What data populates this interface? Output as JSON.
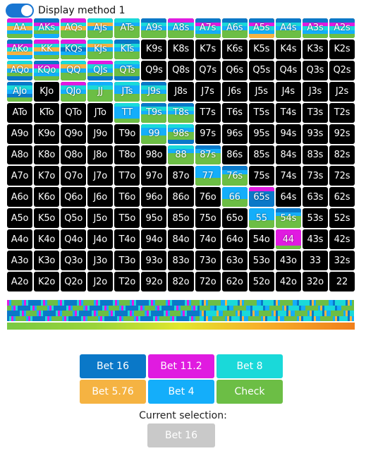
{
  "toggle": {
    "label": "Display method 1",
    "on": true
  },
  "colors": {
    "bet16": "#0a78c8",
    "bet11_2": "#e01be0",
    "bet8": "#1ad9d9",
    "bet5_76": "#f5b342",
    "bet4": "#14aefa",
    "check": "#6cbe45"
  },
  "grid": {
    "rows": [
      [
        "AA",
        "AKs",
        "AQs",
        "AJs",
        "ATs",
        "A9s",
        "A8s",
        "A7s",
        "A6s",
        "A5s",
        "A4s",
        "A3s",
        "A2s"
      ],
      [
        "AKo",
        "KK",
        "KQs",
        "KJs",
        "KTs",
        "K9s",
        "K8s",
        "K7s",
        "K6s",
        "K5s",
        "K4s",
        "K3s",
        "K2s"
      ],
      [
        "AQo",
        "KQo",
        "QQ",
        "QJs",
        "QTs",
        "Q9s",
        "Q8s",
        "Q7s",
        "Q6s",
        "Q5s",
        "Q4s",
        "Q3s",
        "Q2s"
      ],
      [
        "AJo",
        "KJo",
        "QJo",
        "JJ",
        "JTs",
        "J9s",
        "J8s",
        "J7s",
        "J6s",
        "J5s",
        "J4s",
        "J3s",
        "J2s"
      ],
      [
        "ATo",
        "KTo",
        "QTo",
        "JTo",
        "TT",
        "T9s",
        "T8s",
        "T7s",
        "T6s",
        "T5s",
        "T4s",
        "T3s",
        "T2s"
      ],
      [
        "A9o",
        "K9o",
        "Q9o",
        "J9o",
        "T9o",
        "99",
        "98s",
        "97s",
        "96s",
        "95s",
        "94s",
        "93s",
        "92s"
      ],
      [
        "A8o",
        "K8o",
        "Q8o",
        "J8o",
        "T8o",
        "98o",
        "88",
        "87s",
        "86s",
        "85s",
        "84s",
        "83s",
        "82s"
      ],
      [
        "A7o",
        "K7o",
        "Q7o",
        "J7o",
        "T7o",
        "97o",
        "87o",
        "77",
        "76s",
        "75s",
        "74s",
        "73s",
        "72s"
      ],
      [
        "A6o",
        "K6o",
        "Q6o",
        "J6o",
        "T6o",
        "96o",
        "86o",
        "76o",
        "66",
        "65s",
        "64s",
        "63s",
        "62s"
      ],
      [
        "A5o",
        "K5o",
        "Q5o",
        "J5o",
        "T5o",
        "95o",
        "85o",
        "75o",
        "65o",
        "55",
        "54s",
        "53s",
        "52s"
      ],
      [
        "A4o",
        "K4o",
        "Q4o",
        "J4o",
        "T4o",
        "94o",
        "84o",
        "74o",
        "64o",
        "54o",
        "44",
        "43s",
        "42s"
      ],
      [
        "A3o",
        "K3o",
        "Q3o",
        "J3o",
        "T3o",
        "93o",
        "83o",
        "73o",
        "63o",
        "53o",
        "43o",
        "33",
        "32s"
      ],
      [
        "A2o",
        "K2o",
        "Q2o",
        "J2o",
        "T2o",
        "92o",
        "82o",
        "72o",
        "62o",
        "52o",
        "42o",
        "32o",
        "22"
      ]
    ],
    "strategies": {
      "AA": [
        "bet11_2",
        "bet8",
        "bet5_76",
        "bet4",
        "check"
      ],
      "AKs": [
        "bet16",
        "bet11_2",
        "bet8",
        "check",
        "bet4"
      ],
      "AQs": [
        "bet11_2",
        "bet8",
        "bet5_76",
        "check",
        "check"
      ],
      "AJs": [
        "bet8",
        "bet5_76",
        "bet4",
        "check",
        "check"
      ],
      "ATs": [
        "bet8",
        "bet4",
        "check",
        "check",
        "check"
      ],
      "A9s": [
        "bet16",
        "bet8",
        "bet4",
        "check",
        "check"
      ],
      "A8s": [
        "bet11_2",
        "bet8",
        "bet4",
        "check",
        "check"
      ],
      "A7s": [
        "bet16",
        "bet11_2",
        "bet8",
        "bet4",
        "check"
      ],
      "A6s": [
        "bet16",
        "bet8",
        "bet4",
        "check",
        "check"
      ],
      "A5s": [
        "bet16",
        "bet11_2",
        "bet8",
        "bet4",
        "bet5_76"
      ],
      "A4s": [
        "bet16",
        "bet8",
        "bet4",
        "check",
        "check"
      ],
      "A3s": [
        "bet16",
        "bet11_2",
        "bet8",
        "bet4",
        "check"
      ],
      "A2s": [
        "bet16",
        "bet11_2",
        "bet8",
        "bet4",
        "check"
      ],
      "AKo": [
        "bet16",
        "bet11_2",
        "bet8",
        "bet5_76",
        "bet4"
      ],
      "KK": [
        "bet11_2",
        "bet8",
        "bet5_76",
        "bet4",
        "check"
      ],
      "KQs": [
        "bet11_2",
        "bet8",
        "bet16",
        "bet4",
        "check"
      ],
      "KJs": [
        "bet8",
        "bet5_76",
        "bet4",
        "check",
        "check"
      ],
      "KTs": [
        "bet16",
        "bet8",
        "bet4",
        "check",
        "check"
      ],
      "AQo": [
        "bet8",
        "bet5_76",
        "bet4",
        "check",
        "bet16"
      ],
      "KQo": [
        "bet16",
        "bet11_2",
        "bet8",
        "bet4",
        "check"
      ],
      "QQ": [
        "bet8",
        "bet5_76",
        "bet4",
        "check",
        "check"
      ],
      "QJs": [
        "bet11_2",
        "bet8",
        "bet4",
        "check",
        "bet16"
      ],
      "QTs": [
        "bet8",
        "bet4",
        "check",
        "check",
        "bet16"
      ],
      "AJo": [
        "bet16",
        "bet8",
        "bet4",
        "bet16",
        "check"
      ],
      "QJo": [
        "bet11_2",
        "bet8",
        "bet4",
        "check",
        "check"
      ],
      "JJ": [
        "bet4",
        "bet8",
        "check",
        "check",
        "check"
      ],
      "JTs": [
        "bet8",
        "bet4",
        "bet4",
        "check",
        "check"
      ],
      "J9s": [
        "bet16",
        "bet8",
        "bet4",
        "check",
        "check"
      ],
      "TT": [
        "bet8",
        "bet4",
        "bet4",
        "bet4",
        "check"
      ],
      "T9s": [
        "bet16",
        "bet8",
        "bet4",
        "check",
        "check"
      ],
      "T8s": [
        "bet16",
        "bet8",
        "bet4",
        "check",
        "check"
      ],
      "99": [
        "bet8",
        "bet4",
        "bet4",
        "check",
        "check"
      ],
      "98s": [
        "bet8",
        "bet4",
        "check",
        "check",
        "bet16"
      ],
      "88": [
        "bet8",
        "bet4",
        "check",
        "check",
        "check"
      ],
      "87s": [
        "bet16",
        "bet4",
        "check",
        "check",
        "check"
      ],
      "77": [
        "bet4",
        "bet4",
        "bet4",
        "check",
        "check"
      ],
      "76s": [
        "bet16",
        "bet4",
        "check",
        "check",
        "check"
      ],
      "66": [
        "bet4",
        "bet4",
        "bet4",
        "check",
        "check"
      ],
      "65s": [
        "bet11_2",
        "bet16",
        "bet16",
        "bet16",
        "bet16"
      ],
      "55": [
        "bet4",
        "bet4",
        "bet4",
        "check",
        "check"
      ],
      "54s": [
        "bet16",
        "bet4",
        "check",
        "check",
        "check"
      ],
      "44": [
        "bet11_2",
        "bet11_2",
        "bet11_2",
        "bet11_2",
        "check"
      ]
    }
  },
  "ribbon_colors": [
    "bet16",
    "bet11_2",
    "bet8",
    "bet5_76",
    "bet4",
    "check"
  ],
  "actions": [
    {
      "key": "bet16",
      "label": "Bet 16"
    },
    {
      "key": "bet11_2",
      "label": "Bet 11.2"
    },
    {
      "key": "bet8",
      "label": "Bet 8"
    },
    {
      "key": "bet5_76",
      "label": "Bet 5.76"
    },
    {
      "key": "bet4",
      "label": "Bet 4"
    },
    {
      "key": "check",
      "label": "Check"
    }
  ],
  "current_selection": {
    "label": "Current selection:",
    "value": "Bet 16"
  }
}
